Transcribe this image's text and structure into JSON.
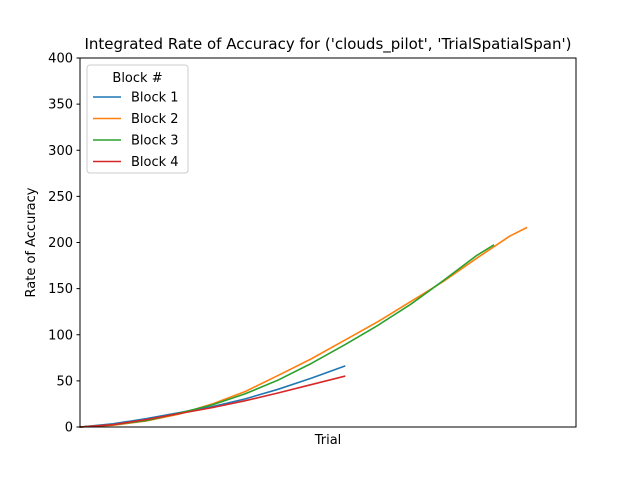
{
  "chart_data": {
    "type": "line",
    "title": "Integrated Rate of Accuracy for ('clouds_pilot', 'TrialSpatialSpan')",
    "xlabel": "Trial",
    "ylabel": "Rate of Accuracy",
    "xlim": [
      0,
      30
    ],
    "ylim": [
      0,
      400
    ],
    "yticks": [
      "0",
      "50",
      "100",
      "150",
      "200",
      "250",
      "300",
      "350",
      "400"
    ],
    "grid": false,
    "legend": {
      "title": "Block #",
      "placement": "top-left"
    },
    "series": [
      {
        "name": "Block 1",
        "color": "#1f77b4",
        "x": [
          0,
          2,
          4,
          6,
          8,
          10,
          12,
          14,
          16
        ],
        "y": [
          0,
          3.5,
          9,
          15.5,
          22,
          30.5,
          41,
          53,
          66
        ]
      },
      {
        "name": "Block 2",
        "color": "#ff7f0e",
        "x": [
          0,
          2,
          4,
          6,
          8,
          10,
          12,
          14,
          16,
          18,
          20,
          22,
          24,
          26,
          27
        ],
        "y": [
          0,
          2,
          6.5,
          14,
          25,
          38.5,
          56,
          74,
          94,
          114,
          136,
          158,
          183,
          207,
          216
        ]
      },
      {
        "name": "Block 3",
        "color": "#2ca02c",
        "x": [
          0,
          2,
          4,
          6,
          8,
          10,
          12,
          14,
          16,
          18,
          20,
          22,
          24,
          25
        ],
        "y": [
          0,
          2.5,
          7,
          15,
          24,
          36,
          51,
          69,
          89,
          110,
          133,
          159,
          186,
          197
        ]
      },
      {
        "name": "Block 4",
        "color": "#d62728",
        "x": [
          0,
          2,
          4,
          6,
          8,
          10,
          12,
          14,
          16
        ],
        "y": [
          0,
          2.5,
          8,
          14.5,
          21,
          28.5,
          37,
          46,
          55
        ]
      }
    ]
  }
}
